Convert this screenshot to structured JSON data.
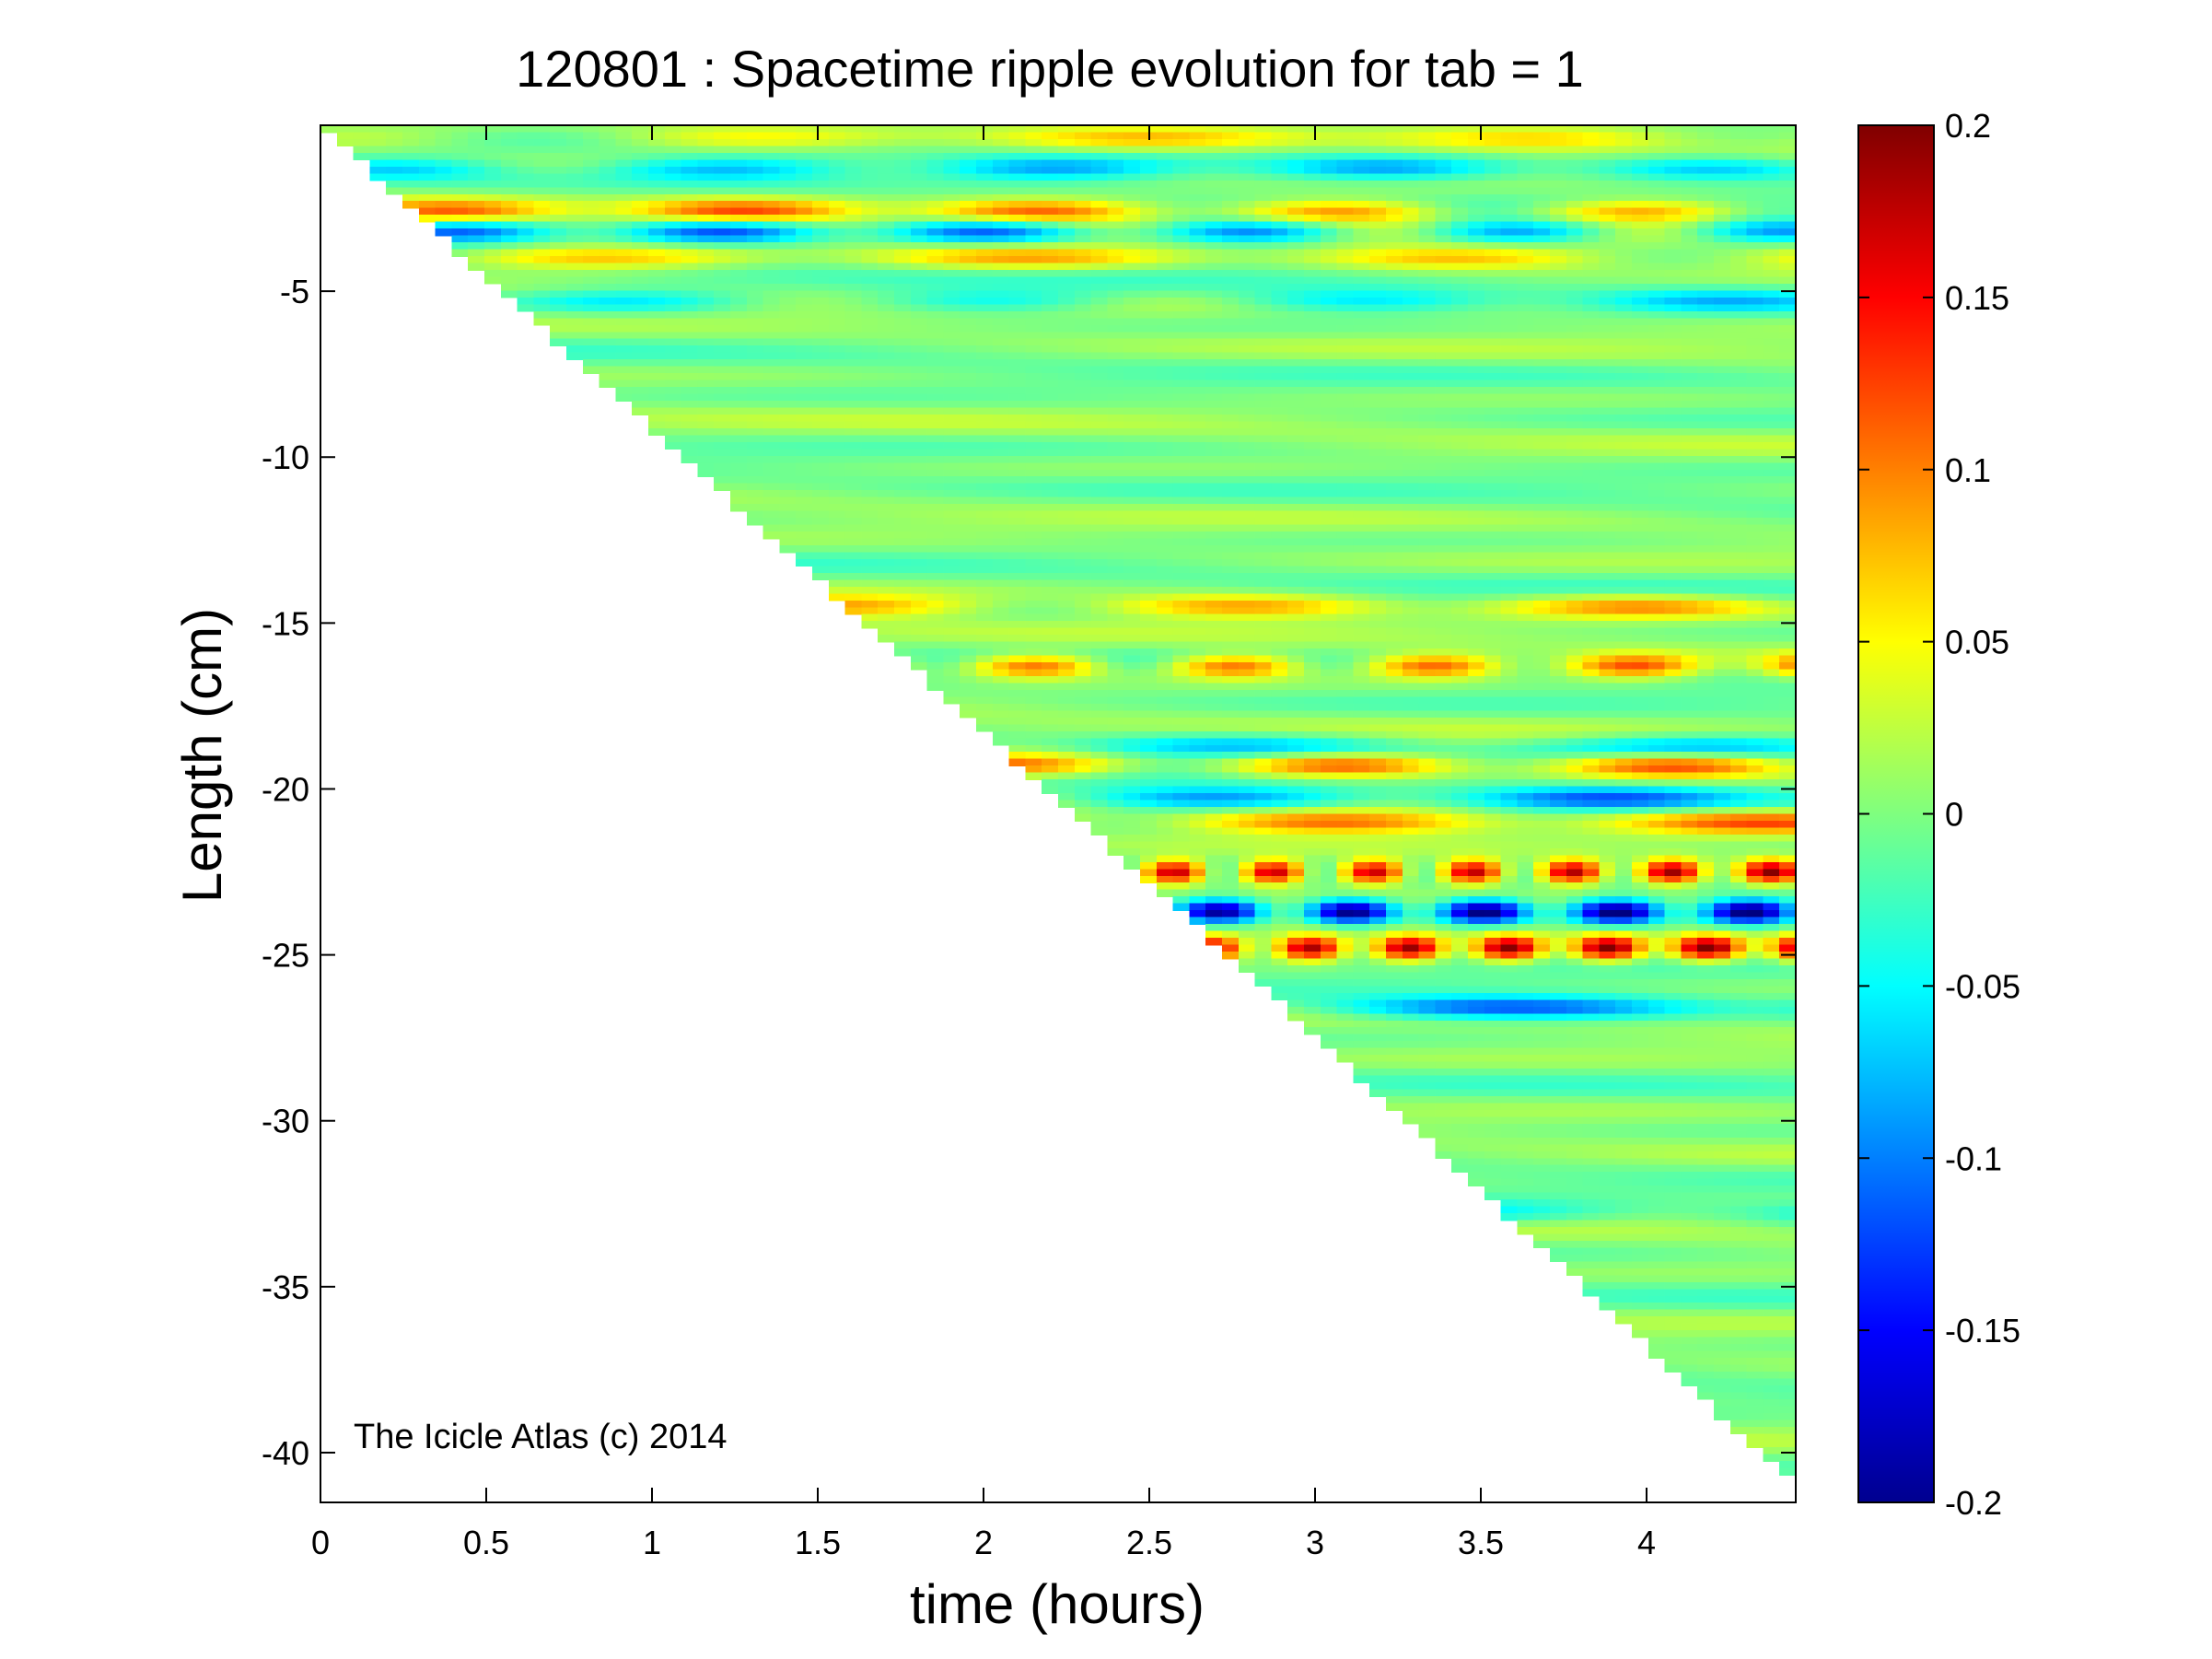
{
  "chart_data": {
    "type": "heatmap",
    "title": "120801 : Spacetime ripple evolution for tab = 1",
    "xlabel": "time (hours)",
    "ylabel": "Length (cm)",
    "xlim": [
      0,
      4.45
    ],
    "ylim": [
      -41.5,
      0
    ],
    "x_ticks": [
      0,
      0.5,
      1,
      1.5,
      2,
      2.5,
      3,
      3.5,
      4
    ],
    "x_tick_labels": [
      "0",
      "0.5",
      "1",
      "1.5",
      "2",
      "2.5",
      "3",
      "3.5",
      "4"
    ],
    "y_ticks": [
      -5,
      -10,
      -15,
      -20,
      -25,
      -30,
      -35,
      -40
    ],
    "y_tick_labels": [
      "-5",
      "-10",
      "-15",
      "-20",
      "-25",
      "-30",
      "-35",
      "-40"
    ],
    "colorbar": {
      "colormap": "jet",
      "range": [
        -0.2,
        0.2
      ],
      "ticks": [
        0.2,
        0.15,
        0.1,
        0.05,
        0,
        -0.05,
        -0.1,
        -0.15,
        -0.2
      ],
      "tick_labels": [
        "0.2",
        "0.15",
        "0.1",
        "0.05",
        "0",
        "-0.05",
        "-0.1",
        "-0.15",
        "-0.2"
      ]
    },
    "growth_front": {
      "description_points": [
        [
          0,
          0
        ],
        [
          2.9,
          -26.5
        ],
        [
          4.45,
          -41.0
        ]
      ]
    },
    "bands": [
      {
        "y": -0.4,
        "amp": 0.05,
        "wl": 1.2
      },
      {
        "y": -1.3,
        "amp": -0.07,
        "wl": 1.0
      },
      {
        "y": -2.6,
        "amp": 0.1,
        "wl": 0.9
      },
      {
        "y": -3.2,
        "amp": -0.11,
        "wl": 0.8
      },
      {
        "y": -4.0,
        "amp": 0.08,
        "wl": 1.3
      },
      {
        "y": -5.3,
        "amp": -0.06,
        "wl": 1.1
      },
      {
        "y": -14.5,
        "amp": 0.09,
        "wl": 1.2
      },
      {
        "y": -16.3,
        "amp": 0.12,
        "wl": 0.6
      },
      {
        "y": -18.7,
        "amp": -0.08,
        "wl": 1.4
      },
      {
        "y": -19.3,
        "amp": 0.12,
        "wl": 1.0
      },
      {
        "y": -20.3,
        "amp": -0.1,
        "wl": 1.2
      },
      {
        "y": -21.0,
        "amp": 0.11,
        "wl": 1.3
      },
      {
        "y": -22.5,
        "amp": 0.2,
        "wl": 0.3
      },
      {
        "y": -23.7,
        "amp": -0.2,
        "wl": 0.4
      },
      {
        "y": -24.8,
        "amp": 0.18,
        "wl": 0.3
      },
      {
        "y": -26.6,
        "amp": -0.12,
        "wl": 1.6
      },
      {
        "y": -32.8,
        "amp": -0.06,
        "wl": 1.5
      }
    ],
    "annotation": "The Icicle Atlas (c) 2014"
  }
}
